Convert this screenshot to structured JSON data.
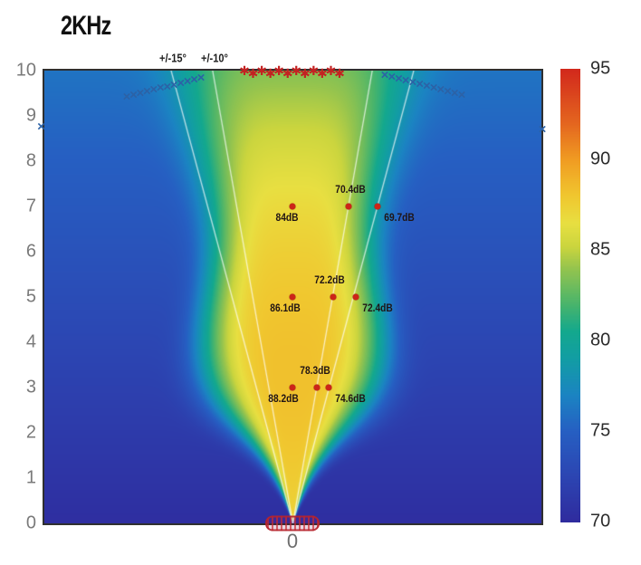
{
  "title": "2KHz",
  "colors": {
    "marker_red": "#c32222",
    "dot_red": "#cc2518",
    "marker_blue": "#2c62a6",
    "beam_line": "rgba(255,255,255,0.7)",
    "axis_frame": "#2f2f2f",
    "tick_gray": "#7a7a7a",
    "colorbar_text": "#2b2b2b"
  },
  "chart_data": {
    "type": "heatmap",
    "title": "2KHz",
    "xlabel": "",
    "ylabel": "",
    "x_tick": "0",
    "y_ticks": [
      10,
      9,
      8,
      7,
      6,
      5,
      4,
      3,
      2,
      1,
      0
    ],
    "ylim": [
      0,
      10
    ],
    "grid": false,
    "colorbar": {
      "min": 70,
      "max": 95,
      "ticks": [
        95,
        90,
        85,
        80,
        75,
        70
      ],
      "position": "right"
    },
    "colormap_stops": [
      [
        70,
        "#2f2b9e"
      ],
      [
        72.5,
        "#2c45b2"
      ],
      [
        75,
        "#265fc2"
      ],
      [
        77,
        "#1b84c2"
      ],
      [
        79,
        "#129da4"
      ],
      [
        80.5,
        "#13a88e"
      ],
      [
        82,
        "#48b46c"
      ],
      [
        84,
        "#95c44e"
      ],
      [
        85.2,
        "#cbd53e"
      ],
      [
        86.5,
        "#e8df41"
      ],
      [
        88,
        "#f0c72f"
      ],
      [
        90,
        "#f09c22"
      ],
      [
        92,
        "#e4661f"
      ],
      [
        95,
        "#d2291c"
      ]
    ],
    "beam_lines": [
      {
        "angle_deg": 15,
        "label": "+/-15°"
      },
      {
        "angle_deg": 10,
        "label": "+/-10°"
      }
    ],
    "measurements": [
      {
        "x": 0,
        "y": 7,
        "label": "84dB",
        "label_offset": [
          -6,
          12
        ]
      },
      {
        "x": 1.24,
        "y": 7,
        "label": "70.4dB",
        "label_offset": [
          2,
          -19
        ]
      },
      {
        "x": 1.88,
        "y": 7,
        "label": "69.7dB",
        "label_offset": [
          24,
          12
        ]
      },
      {
        "x": 0,
        "y": 5,
        "label": "86.1dB",
        "label_offset": [
          -8,
          12
        ]
      },
      {
        "x": 0.9,
        "y": 5,
        "label": "72.2dB",
        "label_offset": [
          -4,
          -19
        ]
      },
      {
        "x": 1.4,
        "y": 5,
        "label": "72.4dB",
        "label_offset": [
          24,
          12
        ]
      },
      {
        "x": 0,
        "y": 3,
        "label": "88.2dB",
        "label_offset": [
          -10,
          12
        ]
      },
      {
        "x": 0.54,
        "y": 3,
        "label": "78.3dB",
        "label_offset": [
          -2,
          -19
        ]
      },
      {
        "x": 0.8,
        "y": 3,
        "label": "74.6dB",
        "label_offset": [
          24,
          12
        ]
      }
    ],
    "asterisk_row": {
      "y": 9.97,
      "x_start": -1.06,
      "x_end": 1.04,
      "count": 12
    },
    "x_marker_chains": [
      {
        "name": "left",
        "x_start": -3.66,
        "x_end": -2.02,
        "y_start": 9.42,
        "y_end": 9.84,
        "count": 12
      },
      {
        "name": "right",
        "x_start": 2.04,
        "x_end": 3.74,
        "y_start": 9.9,
        "y_end": 9.46,
        "count": 12
      }
    ],
    "x_marker_singles": [
      {
        "x": -5.55,
        "y": 8.76
      },
      {
        "x": 5.52,
        "y": 8.7
      }
    ],
    "source_marker": {
      "x": 0,
      "y": 0
    }
  }
}
